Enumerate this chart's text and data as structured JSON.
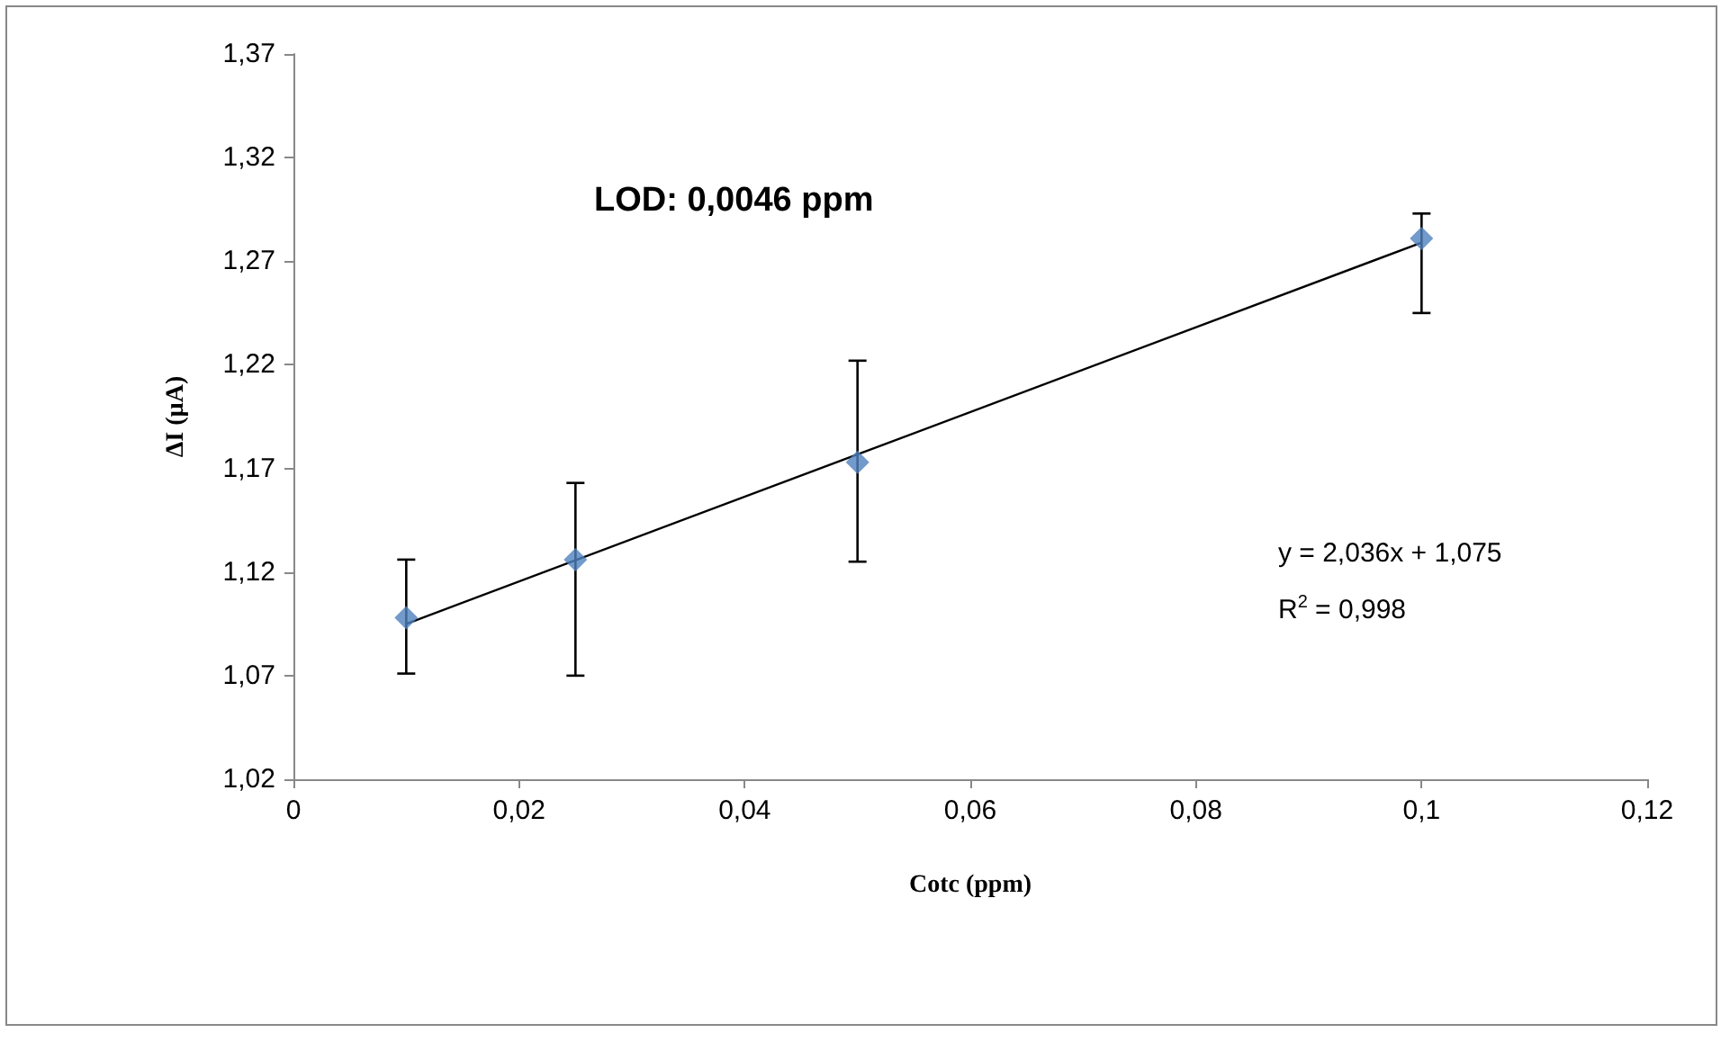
{
  "chart_data": {
    "type": "scatter",
    "xlabel": "Cotc (ppm)",
    "ylabel": "ΔI (µA)",
    "annotations": [
      "LOD: 0,0046 ppm",
      "y = 2,036x + 1,075",
      "R$^{2}$ = 0,998"
    ],
    "x": [
      0.01,
      0.025,
      0.05,
      0.1
    ],
    "series": [
      {
        "color": "#4f81bd",
        "values": [
          1.098,
          1.126,
          1.173,
          1.281
        ],
        "errors": [
          [
            1.071,
            1.126
          ],
          [
            1.07,
            1.163
          ],
          [
            1.125,
            1.222
          ],
          [
            1.245,
            1.293
          ]
        ],
        "marker": "diamond"
      },
      {
        "type": "line",
        "color": "#000000",
        "x": [
          0.01,
          0.1
        ],
        "values": [
          1.095,
          1.279
        ],
        "marker": "none"
      }
    ],
    "xlim": [
      0,
      0.12
    ],
    "xticks": [
      0,
      {
        "value": 0.02,
        "label": "0,02"
      },
      {
        "value": 0.04,
        "label": "0,04"
      },
      {
        "value": 0.06,
        "label": "0,06"
      },
      {
        "value": 0.08,
        "label": "0,08"
      },
      {
        "value": 0.1,
        "label": "0,1"
      },
      {
        "value": 0.12,
        "label": "0,12"
      }
    ],
    "ylim": [
      1.02,
      1.37
    ],
    "yticks": [
      {
        "value": 1.02,
        "label": "1,02"
      },
      {
        "value": 1.07,
        "label": "1,07"
      },
      {
        "value": 1.12,
        "label": "1,12"
      },
      {
        "value": 1.17,
        "label": "1,17"
      },
      {
        "value": 1.22,
        "label": "1,22"
      },
      {
        "value": 1.27,
        "label": "1,27"
      },
      {
        "value": 1.32,
        "label": "1,32"
      },
      {
        "value": 1.37,
        "label": "1,37"
      }
    ],
    "grid": false
  }
}
